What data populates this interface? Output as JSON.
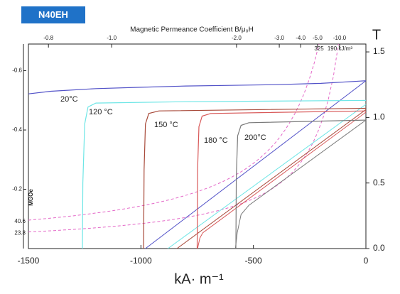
{
  "chart_data": {
    "type": "line",
    "badge": "N40EH",
    "title": "Magnetic Permeance Coefficient B/μ₀H",
    "x_label": "kA· m⁻¹",
    "y_label": "T",
    "y2_label": "MGOe",
    "xlim": [
      -1500,
      0
    ],
    "ylim": [
      0,
      1.56
    ],
    "y2lim": [
      0,
      -0.69
    ],
    "xticks": [
      -1500,
      -1000,
      -500,
      0
    ],
    "yticks": [
      {
        "value": 0,
        "label": "0.0"
      },
      {
        "value": 0.5,
        "label": "0.5"
      },
      {
        "value": 1,
        "label": "1.0"
      },
      {
        "value": 1.5,
        "label": "1.5"
      }
    ],
    "y2ticks": [
      -0.6,
      -0.4,
      -0.2
    ],
    "top_ticks": [
      {
        "value": -1411,
        "label": "-0.8"
      },
      {
        "value": -1130,
        "label": "-1.0"
      },
      {
        "value": -575,
        "label": "-2.0"
      },
      {
        "value": -385,
        "label": "-3.0"
      },
      {
        "value": -290,
        "label": "-4.0"
      },
      {
        "value": -215,
        "label": "-5.0"
      },
      {
        "value": -117,
        "label": "-10.0"
      }
    ],
    "series": [
      {
        "name": "20°C",
        "color": "#5252c8",
        "x": [
          -1500,
          -1400,
          -1200,
          -1000,
          -800,
          -600,
          -400,
          -200,
          0
        ],
        "values": [
          1.18,
          1.2,
          1.22,
          1.23,
          1.24,
          1.245,
          1.25,
          1.26,
          1.28
        ],
        "b_x": [
          -980,
          0
        ],
        "b_values": [
          0,
          1.28
        ]
      },
      {
        "name": "120 °C",
        "color": "#6ee6e6",
        "x": [
          -1260,
          -1258,
          -1250,
          -1235,
          -1200,
          -800,
          0
        ],
        "values": [
          0,
          0.5,
          0.95,
          1.08,
          1.11,
          1.12,
          1.13
        ],
        "b_x": [
          -880,
          0
        ],
        "b_values": [
          0,
          1.1
        ]
      },
      {
        "name": "150 °C",
        "color": "#a84a3a",
        "x": [
          -988,
          -986,
          -980,
          -965,
          -920,
          0
        ],
        "values": [
          0,
          0.6,
          0.95,
          1.03,
          1.05,
          1.07
        ],
        "b_x": [
          -840,
          0
        ],
        "b_values": [
          0,
          1.06
        ]
      },
      {
        "name": "180 °C",
        "color": "#d85858",
        "x": [
          -750,
          -748,
          -742,
          -728,
          -690,
          0
        ],
        "values": [
          0,
          0.6,
          0.93,
          1.01,
          1.03,
          1.05
        ],
        "b_x": [
          -748,
          -738,
          -725,
          0
        ],
        "b_values": [
          0,
          0.08,
          0.12,
          1.04
        ]
      },
      {
        "name": "200°C",
        "color": "#7a7a7a",
        "x": [
          -578,
          -576,
          -570,
          -555,
          -520,
          0
        ],
        "values": [
          0,
          0.55,
          0.86,
          0.94,
          0.96,
          0.98
        ],
        "b_x": [
          -580,
          -572,
          -555,
          -520,
          0
        ],
        "b_values": [
          0,
          0.12,
          0.26,
          0.33,
          0.98
        ]
      }
    ],
    "energy_curves": [
      {
        "value": 325,
        "label": "325",
        "mgoe": "40.6"
      },
      {
        "value": 190,
        "label": "190 kJ/m³",
        "mgoe": "23.8"
      }
    ],
    "energy_color": "#e468c8"
  }
}
